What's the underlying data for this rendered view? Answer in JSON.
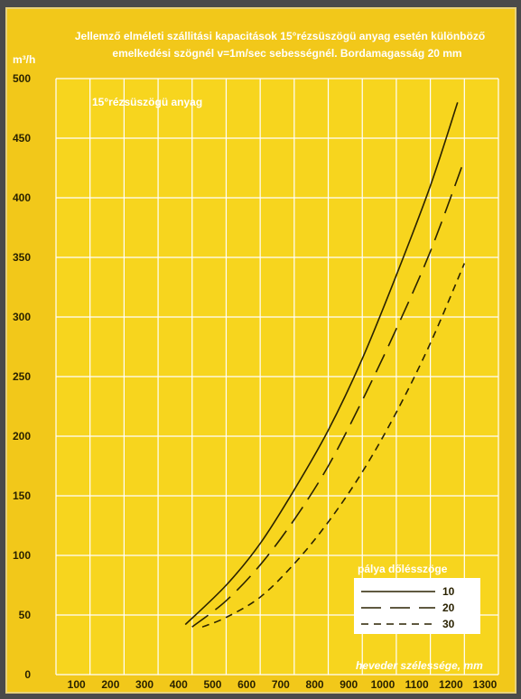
{
  "chart_data": {
    "type": "line",
    "title_lines": [
      "Jellemző elméleti szállitási kapacitások 15°rézsüszögü anyag esetén különböző",
      "emelkedési szögnél v=1m/sec sebességnél.  Bordamagasság 20 mm"
    ],
    "ylabel": "m³/h",
    "xlabel": "heveder szélessége, mm",
    "annotation": "15°rézsüszögü anyag",
    "xlim": [
      0,
      1300
    ],
    "ylim": [
      0,
      500
    ],
    "x_ticks": [
      "100",
      "200",
      "300",
      "400",
      "500",
      "600",
      "700",
      "800",
      "900",
      "1000",
      "1100",
      "1200",
      "1300"
    ],
    "y_ticks": [
      "0",
      "50",
      "100",
      "150",
      "200",
      "250",
      "300",
      "350",
      "400",
      "450",
      "500"
    ],
    "grid": true,
    "legend_title": "pálya dőlésszöge",
    "legend_position": "bottom-right",
    "series": [
      {
        "name": "10",
        "style": "solid",
        "x": [
          380,
          500,
          600,
          700,
          800,
          900,
          1000,
          1100,
          1180
        ],
        "y": [
          42,
          75,
          110,
          155,
          205,
          265,
          335,
          410,
          480
        ]
      },
      {
        "name": "20",
        "style": "long-dash",
        "x": [
          400,
          500,
          600,
          700,
          800,
          900,
          1000,
          1100,
          1200
        ],
        "y": [
          40,
          62,
          92,
          130,
          175,
          230,
          290,
          355,
          432
        ]
      },
      {
        "name": "30",
        "style": "short-dash",
        "x": [
          430,
          500,
          600,
          700,
          800,
          900,
          1000,
          1100,
          1200
        ],
        "y": [
          40,
          48,
          65,
          93,
          128,
          170,
          220,
          278,
          345
        ]
      }
    ]
  }
}
